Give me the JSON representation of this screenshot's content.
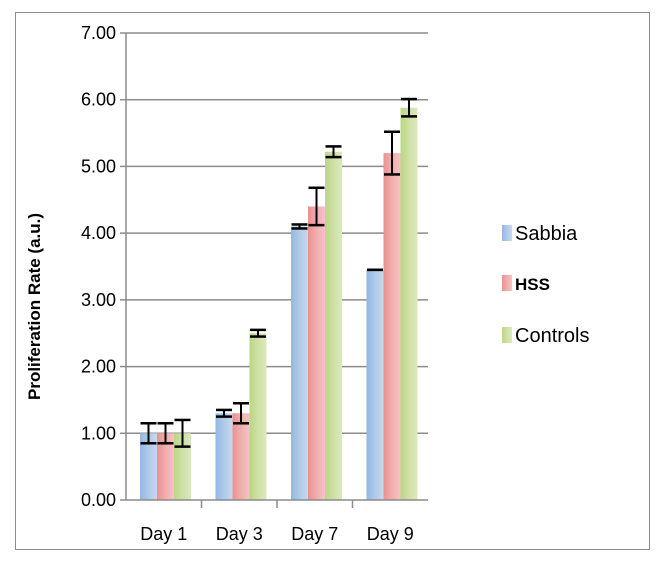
{
  "chart_data": {
    "type": "bar",
    "title": "",
    "xlabel": "",
    "ylabel": "Proliferation Rate (a.u.)",
    "ylim": [
      0,
      7
    ],
    "yticks": [
      "0.00",
      "1.00",
      "2.00",
      "3.00",
      "4.00",
      "5.00",
      "6.00",
      "7.00"
    ],
    "grid": true,
    "legend_position": "right",
    "categories": [
      "Day 1",
      "Day 3",
      "Day 7",
      "Day 9"
    ],
    "series": [
      {
        "name": "Sabbia",
        "color": "#6f9fd8",
        "values": [
          1.0,
          1.3,
          4.1,
          3.45
        ],
        "errors": [
          0.15,
          0.05,
          0.03,
          0.0
        ]
      },
      {
        "name": "HSS",
        "color": "#e46c6a",
        "values": [
          1.0,
          1.3,
          4.4,
          5.2
        ],
        "errors": [
          0.15,
          0.15,
          0.28,
          0.32
        ]
      },
      {
        "name": "Controls",
        "color": "#a5c85c",
        "values": [
          1.0,
          2.5,
          5.22,
          5.88
        ],
        "errors": [
          0.2,
          0.05,
          0.08,
          0.13
        ]
      }
    ]
  }
}
